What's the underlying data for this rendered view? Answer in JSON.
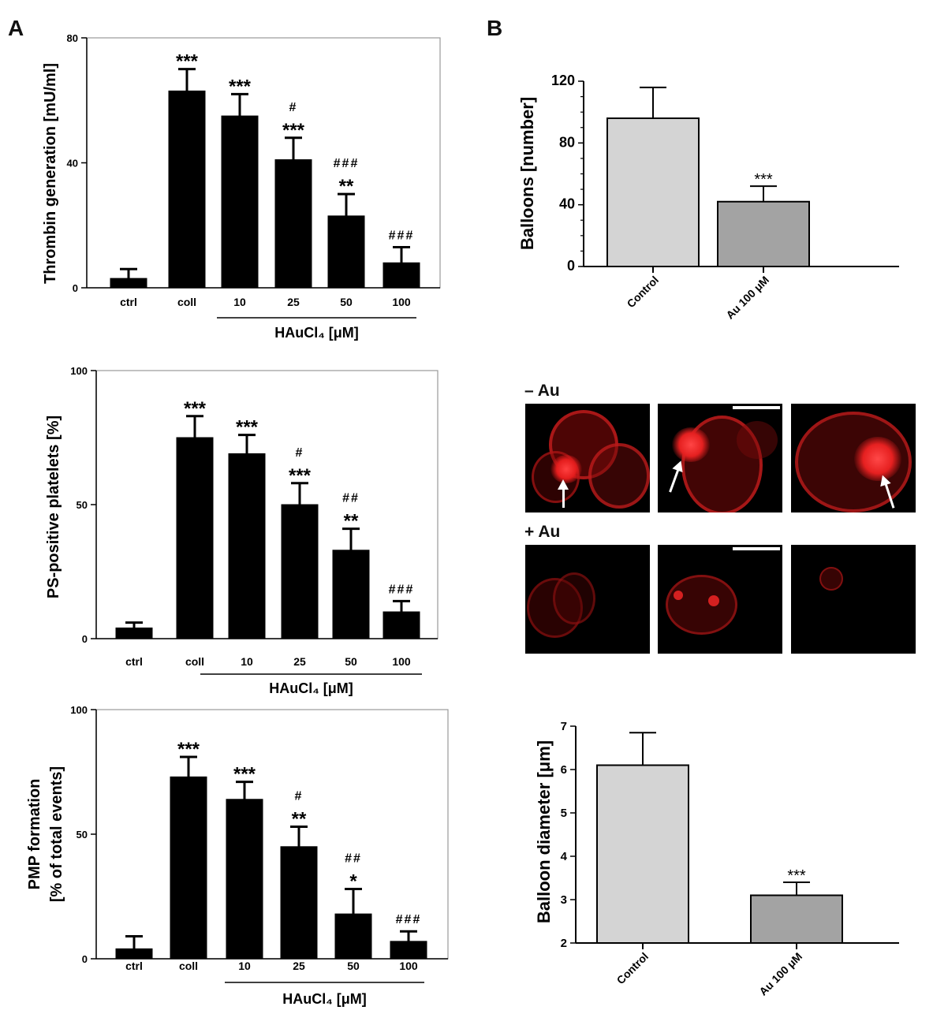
{
  "panels": {
    "a": "A",
    "b": "B"
  },
  "colors": {
    "bar_black": "#000000",
    "bar_control": "#d4d4d4",
    "bar_au": "#a3a3a3",
    "frame": "#999999"
  },
  "micro": {
    "minus_label": "– Au",
    "plus_label": "+ Au"
  },
  "chart_data": [
    {
      "id": "thrombin",
      "type": "bar",
      "categories": [
        "ctrl",
        "coll",
        "10",
        "25",
        "50",
        "100"
      ],
      "values": [
        3,
        63,
        55,
        41,
        23,
        8
      ],
      "errors": [
        3,
        7,
        7,
        7,
        7,
        5
      ],
      "annotations": [
        "",
        "***",
        "***",
        "#\n***",
        "###\n**",
        "###"
      ],
      "ylabel": "Thrombin generation [mU/ml]",
      "ylabel2": "",
      "yticks": [
        0,
        40,
        80
      ],
      "ylim": [
        0,
        80
      ],
      "group_label": "HAuCl₄ [μM]",
      "colors": [
        "#000000"
      ]
    },
    {
      "id": "ps",
      "type": "bar",
      "categories": [
        "ctrl",
        "coll",
        "10",
        "25",
        "50",
        "100"
      ],
      "values": [
        4,
        75,
        69,
        50,
        33,
        10
      ],
      "errors": [
        2,
        8,
        7,
        8,
        8,
        4
      ],
      "annotations": [
        "",
        "***",
        "***",
        "#\n***",
        "##\n**",
        "###"
      ],
      "ylabel": "PS-positive platelets [%]",
      "ylabel2": "",
      "yticks": [
        0,
        50,
        100
      ],
      "ylim": [
        0,
        100
      ],
      "group_label": "HAuCl₄ [μM]",
      "colors": [
        "#000000"
      ]
    },
    {
      "id": "pmp",
      "type": "bar",
      "categories": [
        "ctrl",
        "coll",
        "10",
        "25",
        "50",
        "100"
      ],
      "values": [
        4,
        73,
        64,
        45,
        18,
        7
      ],
      "errors": [
        5,
        8,
        7,
        8,
        10,
        4
      ],
      "annotations": [
        "",
        "***",
        "***",
        "#\n**",
        "##\n*",
        "###"
      ],
      "ylabel": "PMP formation",
      "ylabel2": "[% of total events]",
      "yticks": [
        0,
        50,
        100
      ],
      "ylim": [
        0,
        100
      ],
      "group_label": "HAuCl₄ [μM]",
      "colors": [
        "#000000"
      ]
    },
    {
      "id": "balloons",
      "type": "bar",
      "categories": [
        "Control",
        "Au 100 μM"
      ],
      "values": [
        96,
        42
      ],
      "errors": [
        20,
        10
      ],
      "annotations": [
        "",
        "***"
      ],
      "ylabel": "Balloons [number]",
      "ylabel2": "",
      "yticks": [
        0,
        40,
        80,
        120
      ],
      "ylim": [
        0,
        120
      ],
      "group_label": "",
      "colors": [
        "#d4d4d4",
        "#a3a3a3"
      ]
    },
    {
      "id": "diameter",
      "type": "bar",
      "categories": [
        "Control",
        "Au 100 μM"
      ],
      "values": [
        6.1,
        3.1
      ],
      "errors": [
        0.75,
        0.3
      ],
      "annotations": [
        "",
        "***"
      ],
      "ylabel": "Balloon diameter [μm]",
      "ylabel2": "",
      "yticks": [
        2,
        3,
        4,
        5,
        6,
        7
      ],
      "ylim": [
        2,
        7
      ],
      "group_label": "",
      "colors": [
        "#d4d4d4",
        "#a3a3a3"
      ]
    }
  ]
}
